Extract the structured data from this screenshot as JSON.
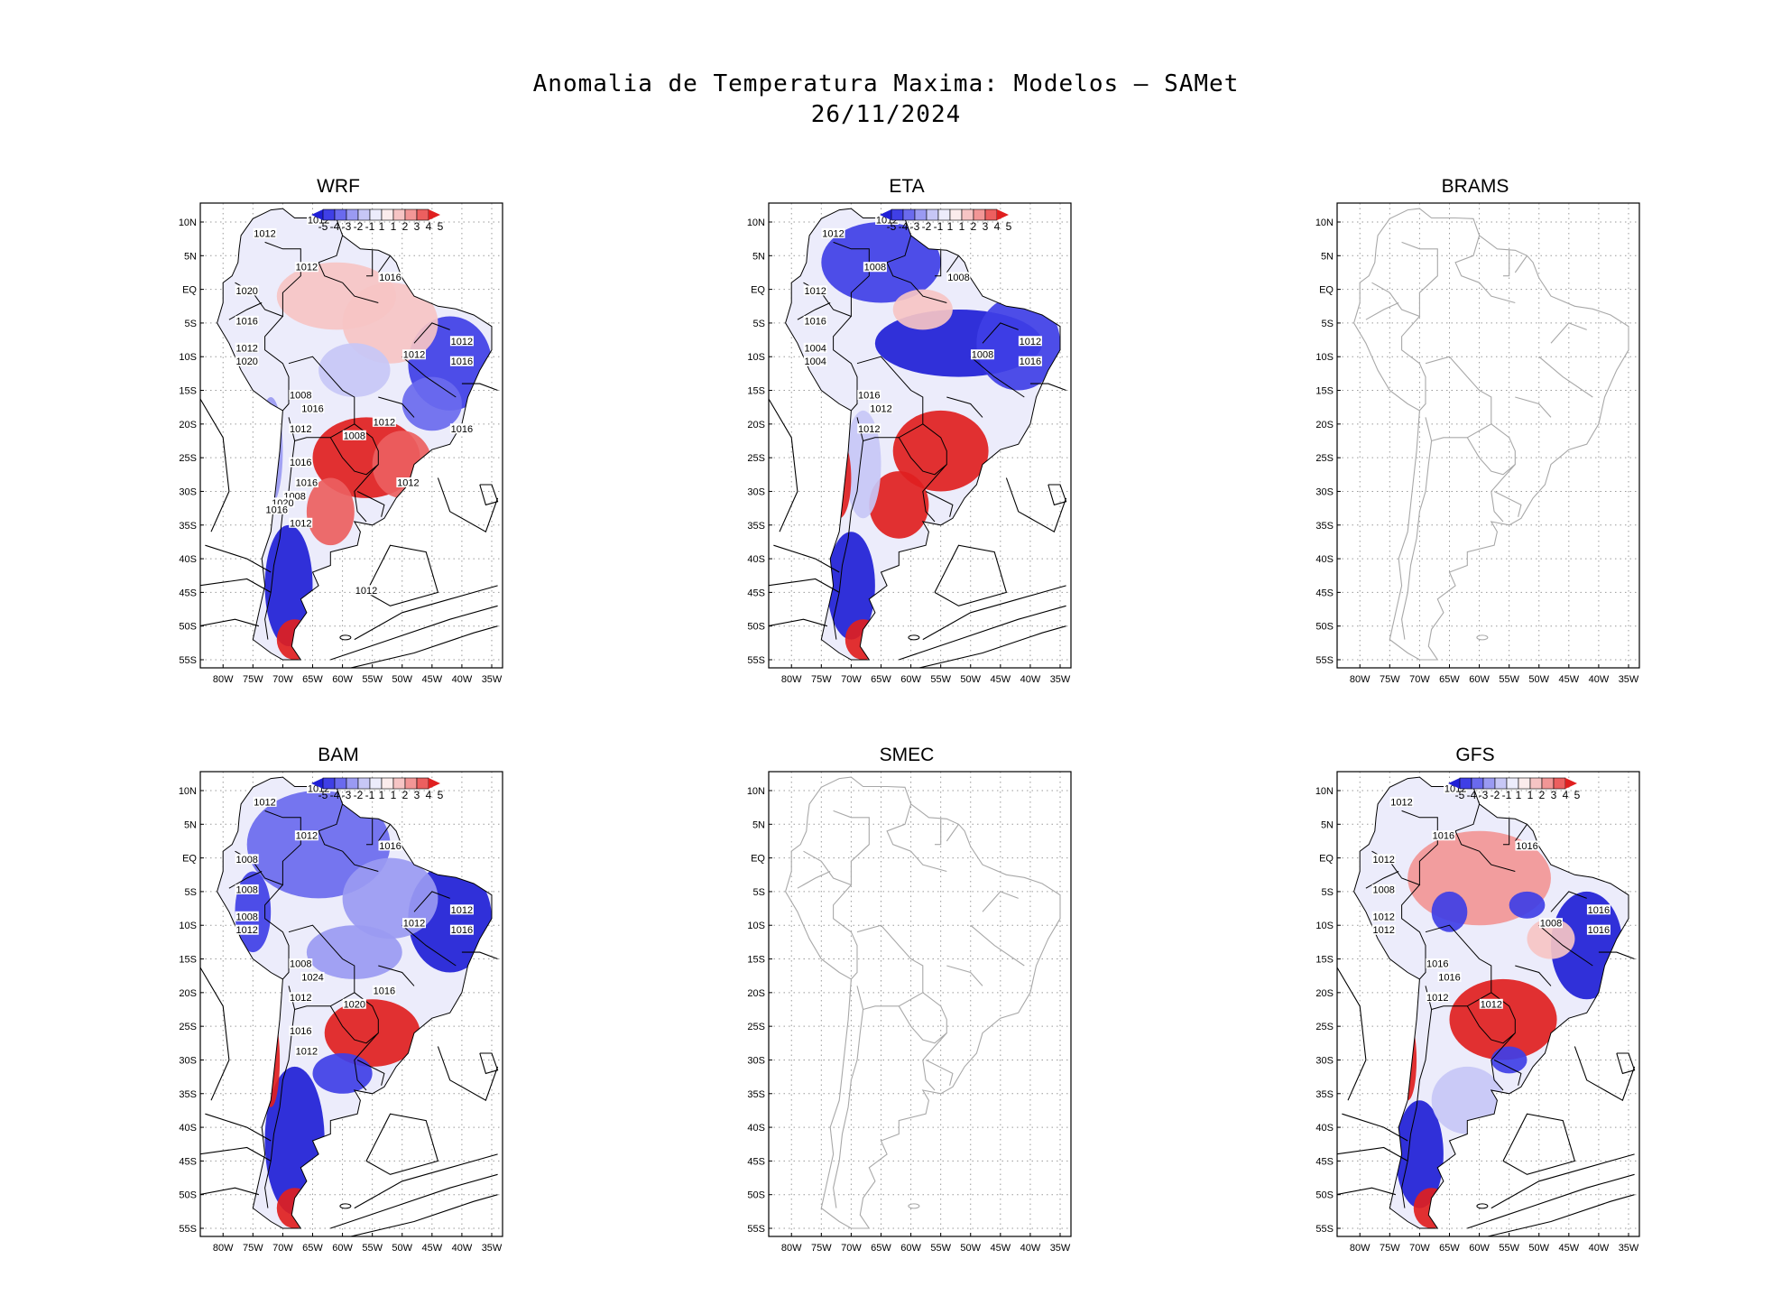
{
  "title": {
    "line1": "Anomalia de Temperatura Maxima: Modelos — SAMet",
    "line2": "26/11/2024"
  },
  "axes": {
    "lat_labels": [
      "10N",
      "5N",
      "EQ",
      "5S",
      "10S",
      "15S",
      "20S",
      "25S",
      "30S",
      "35S",
      "40S",
      "45S",
      "50S",
      "55S"
    ],
    "lon_labels": [
      "80W",
      "75W",
      "70W",
      "65W",
      "60W",
      "55W",
      "50W",
      "45W",
      "40W",
      "35W"
    ]
  },
  "colorbar": {
    "labels": [
      "-5",
      "-4",
      "-3",
      "-2",
      "-1",
      "1",
      "1",
      "2",
      "3",
      "4",
      "5"
    ],
    "colors": [
      "#1f1fd6",
      "#3f3fe6",
      "#6a6aee",
      "#9a9af2",
      "#c7c7f6",
      "#ececfb",
      "#fbecec",
      "#f6c4c4",
      "#f29696",
      "#ec5f5f",
      "#e01f1f"
    ]
  },
  "panels": [
    {
      "name": "WRF",
      "has_data": true,
      "pressure_labels": [
        "1012",
        "1012",
        "1012",
        "1016",
        "1020",
        "1016",
        "1012",
        "1020",
        "1012",
        "1012",
        "1016",
        "1008",
        "1016",
        "1012",
        "1008",
        "1012",
        "1016",
        "1016",
        "1008",
        "1020",
        "1016",
        "1012",
        "1012",
        "1016",
        "1012"
      ]
    },
    {
      "name": "ETA",
      "has_data": true,
      "pressure_labels": [
        "1012",
        "1012",
        "1008",
        "1008",
        "1012",
        "1016",
        "1004",
        "1004",
        "1008",
        "1012",
        "1016",
        "1016",
        "1012",
        "1012"
      ]
    },
    {
      "name": "BRAMS",
      "has_data": false,
      "pressure_labels": []
    },
    {
      "name": "BAM",
      "has_data": true,
      "pressure_labels": [
        "1012",
        "1012",
        "1012",
        "1016",
        "1008",
        "1008",
        "1008",
        "1012",
        "1012",
        "1012",
        "1016",
        "1008",
        "1024",
        "1012",
        "1020",
        "1016",
        "1016",
        "1012"
      ]
    },
    {
      "name": "SMEC",
      "has_data": false,
      "pressure_labels": []
    },
    {
      "name": "GFS",
      "has_data": true,
      "pressure_labels": [
        "1012",
        "1012",
        "1016",
        "1016",
        "1012",
        "1008",
        "1012",
        "1012",
        "1008",
        "1016",
        "1016",
        "1016",
        "1016",
        "1012",
        "1012"
      ]
    }
  ]
}
